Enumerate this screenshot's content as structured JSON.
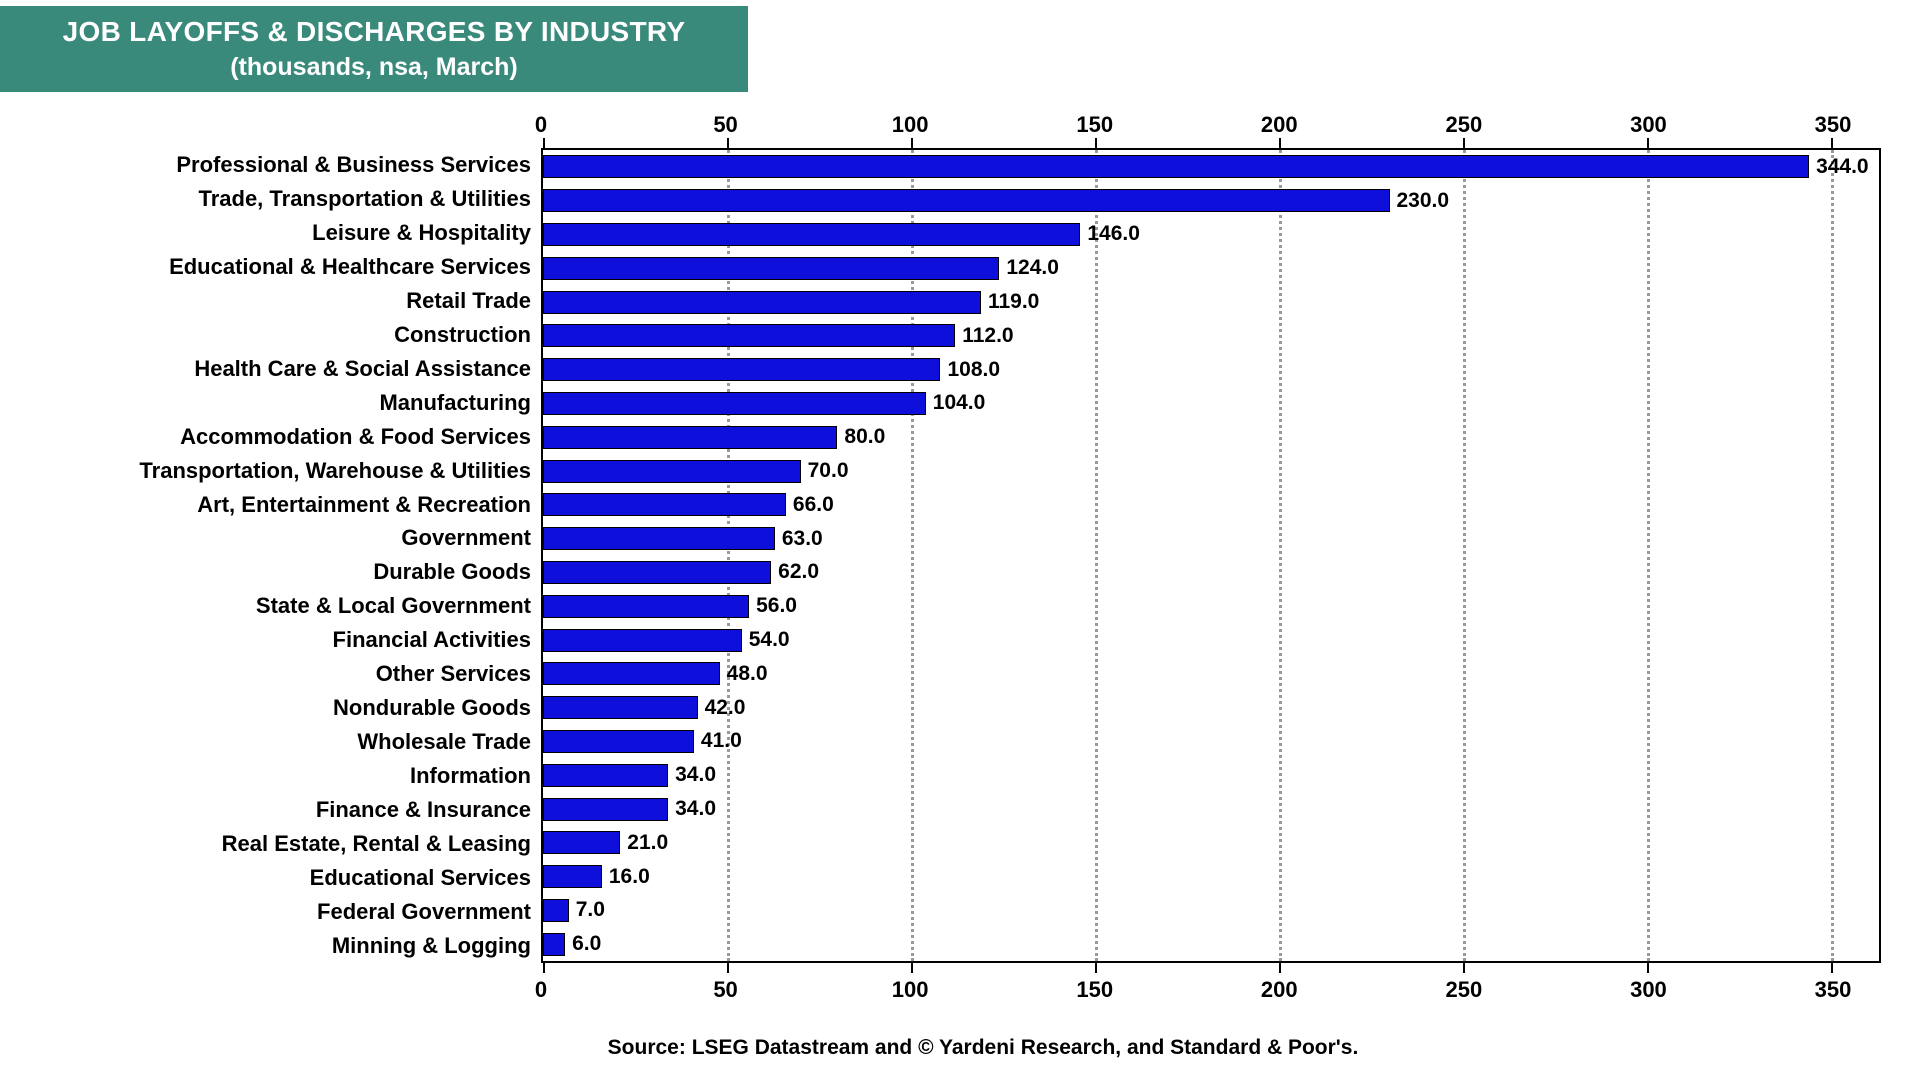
{
  "title": {
    "line1": "JOB LAYOFFS & DISCHARGES BY INDUSTRY",
    "line2": "(thousands, nsa, March)"
  },
  "source": "Source: LSEG Datastream and © Yardeni Research, and Standard & Poor's.",
  "colors": {
    "title_bg": "#3a8a7c",
    "title_text": "#ffffff",
    "bar": "#0f0fdc",
    "bar_border": "#000000",
    "grid": "#9a9a9a",
    "text": "#000000"
  },
  "chart_data": {
    "type": "bar",
    "orientation": "horizontal",
    "title": "JOB LAYOFFS & DISCHARGES BY INDUSTRY",
    "subtitle": "(thousands, nsa, March)",
    "categories": [
      "Professional & Business Services",
      "Trade, Transportation & Utilities",
      "Leisure & Hospitality",
      "Educational & Healthcare Services",
      "Retail Trade",
      "Construction",
      "Health Care & Social Assistance",
      "Manufacturing",
      "Accommodation & Food Services",
      "Transportation, Warehouse & Utilities",
      "Art, Entertainment & Recreation",
      "Government",
      "Durable Goods",
      "State & Local Government",
      "Financial Activities",
      "Other Services",
      "Nondurable Goods",
      "Wholesale Trade",
      "Information",
      "Finance & Insurance",
      "Real Estate, Rental & Leasing",
      "Educational Services",
      "Federal Government",
      "Minning & Logging"
    ],
    "values": [
      344,
      230,
      146,
      124,
      119,
      112,
      108,
      104,
      80,
      70,
      66,
      63,
      62,
      56,
      54,
      48,
      42,
      41,
      34,
      34,
      21,
      16,
      7,
      6
    ],
    "value_label_decimals": 1,
    "xlim": [
      0,
      363
    ],
    "xticks": [
      0,
      50,
      100,
      150,
      200,
      250,
      300,
      350
    ],
    "grid": "vertical-dotted",
    "axis_labels_position": "top-and-bottom",
    "legend": "none"
  }
}
